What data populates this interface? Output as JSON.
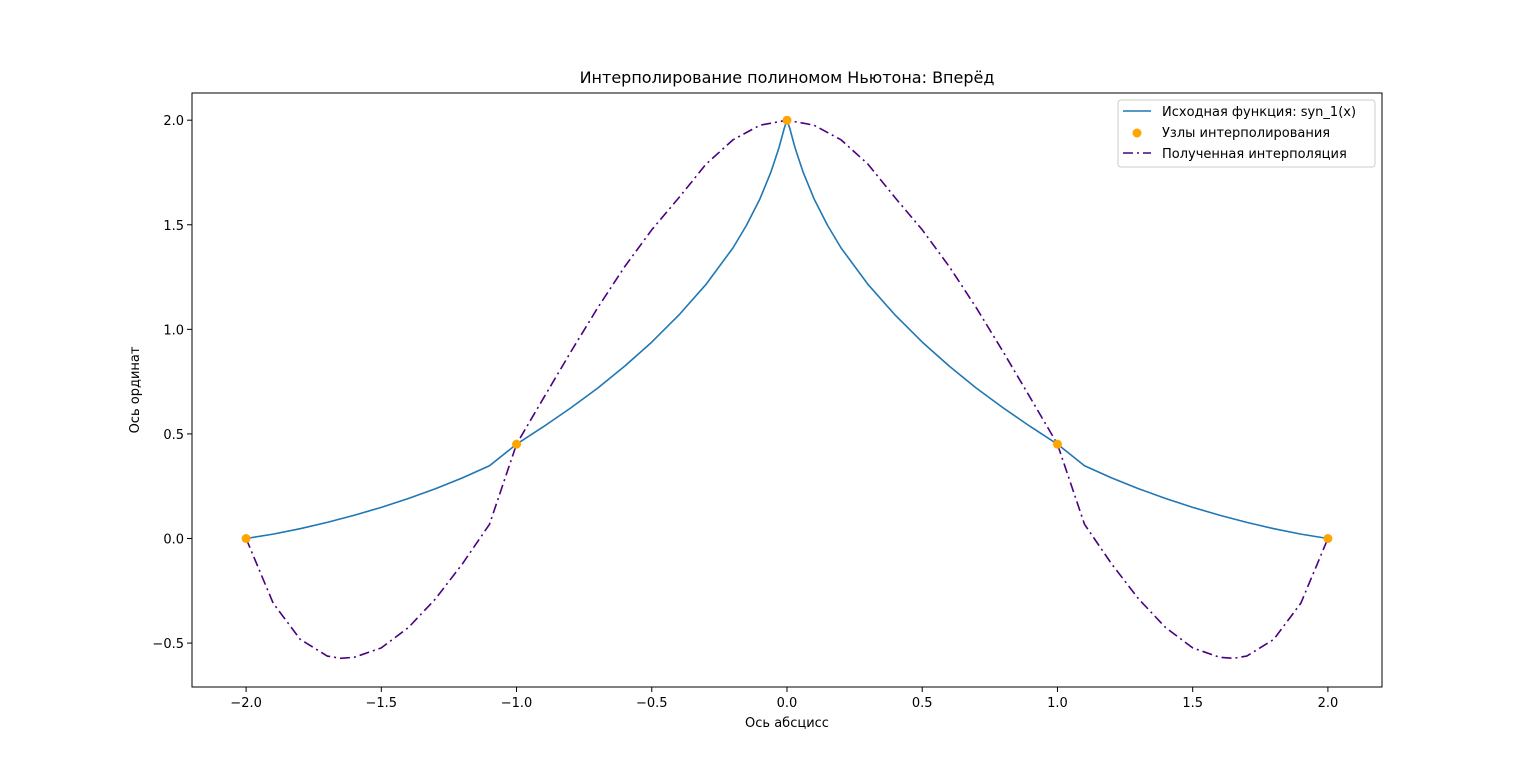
{
  "chart_data": {
    "type": "line",
    "title": "Интерполирование полиномом Ньютона: Вперёд",
    "xlabel": "Ось абсцисс",
    "ylabel": "Ось ординат",
    "xlim": [
      -2.2,
      2.2
    ],
    "ylim": [
      -0.71,
      2.13
    ],
    "x_ticks": [
      -2.0,
      -1.5,
      -1.0,
      -0.5,
      0.0,
      0.5,
      1.0,
      1.5,
      2.0
    ],
    "x_tick_labels": [
      "−2.0",
      "−1.5",
      "−1.0",
      "−0.5",
      "0.0",
      "0.5",
      "1.0",
      "1.5",
      "2.0"
    ],
    "y_ticks": [
      -0.5,
      0.0,
      0.5,
      1.0,
      1.5,
      2.0
    ],
    "y_tick_labels": [
      "−0.5",
      "0.0",
      "0.5",
      "1.0",
      "1.5",
      "2.0"
    ],
    "grid": false,
    "legend_position": "top-right",
    "series": [
      {
        "name": "Исходная функция: syn_1(x)",
        "kind": "line",
        "color": "#1f77b4",
        "x": [
          -2.0,
          -1.9,
          -1.8,
          -1.7,
          -1.6,
          -1.5,
          -1.4,
          -1.3,
          -1.2,
          -1.1,
          -1.0,
          -0.9,
          -0.8,
          -0.7,
          -0.6,
          -0.5,
          -0.4,
          -0.3,
          -0.2,
          -0.15,
          -0.1,
          -0.06,
          -0.03,
          -0.01,
          0.0,
          0.01,
          0.03,
          0.06,
          0.1,
          0.15,
          0.2,
          0.3,
          0.4,
          0.5,
          0.6,
          0.7,
          0.8,
          0.9,
          1.0,
          1.1,
          1.2,
          1.3,
          1.4,
          1.5,
          1.6,
          1.7,
          1.8,
          1.9,
          2.0
        ],
        "y": [
          0.0,
          0.021,
          0.047,
          0.077,
          0.111,
          0.149,
          0.191,
          0.238,
          0.29,
          0.348,
          0.451,
          0.535,
          0.624,
          0.719,
          0.824,
          0.939,
          1.068,
          1.214,
          1.389,
          1.497,
          1.624,
          1.75,
          1.867,
          1.962,
          2.0,
          1.962,
          1.867,
          1.75,
          1.624,
          1.497,
          1.389,
          1.214,
          1.068,
          0.939,
          0.824,
          0.719,
          0.624,
          0.535,
          0.451,
          0.348,
          0.29,
          0.238,
          0.191,
          0.149,
          0.111,
          0.077,
          0.047,
          0.021,
          0.0
        ]
      },
      {
        "name": "Узлы интерполирования",
        "kind": "scatter",
        "color": "#ffa500",
        "x": [
          -2.0,
          -1.0,
          0.0,
          1.0,
          2.0
        ],
        "y": [
          0.0,
          0.451,
          2.0,
          0.451,
          0.0
        ]
      },
      {
        "name": "Полученная интерполяция",
        "kind": "dashdot",
        "color": "#4b0082",
        "x": [
          -2.0,
          -1.9,
          -1.8,
          -1.7,
          -1.65,
          -1.6,
          -1.5,
          -1.4,
          -1.3,
          -1.2,
          -1.1,
          -1.0,
          -0.9,
          -0.8,
          -0.7,
          -0.6,
          -0.5,
          -0.4,
          -0.3,
          -0.2,
          -0.1,
          0.0,
          0.1,
          0.2,
          0.3,
          0.4,
          0.5,
          0.6,
          0.7,
          0.8,
          0.9,
          1.0,
          1.1,
          1.2,
          1.3,
          1.4,
          1.5,
          1.6,
          1.65,
          1.7,
          1.8,
          1.9,
          2.0
        ],
        "y": [
          0.0,
          -0.309,
          -0.482,
          -0.562,
          -0.573,
          -0.568,
          -0.523,
          -0.426,
          -0.289,
          -0.121,
          0.068,
          0.451,
          0.672,
          0.891,
          1.103,
          1.3,
          1.476,
          1.629,
          1.789,
          1.906,
          1.976,
          2.0,
          1.976,
          1.906,
          1.789,
          1.629,
          1.476,
          1.3,
          1.103,
          0.891,
          0.672,
          0.451,
          0.068,
          -0.121,
          -0.289,
          -0.426,
          -0.523,
          -0.568,
          -0.573,
          -0.562,
          -0.482,
          -0.309,
          0.0
        ]
      }
    ]
  }
}
